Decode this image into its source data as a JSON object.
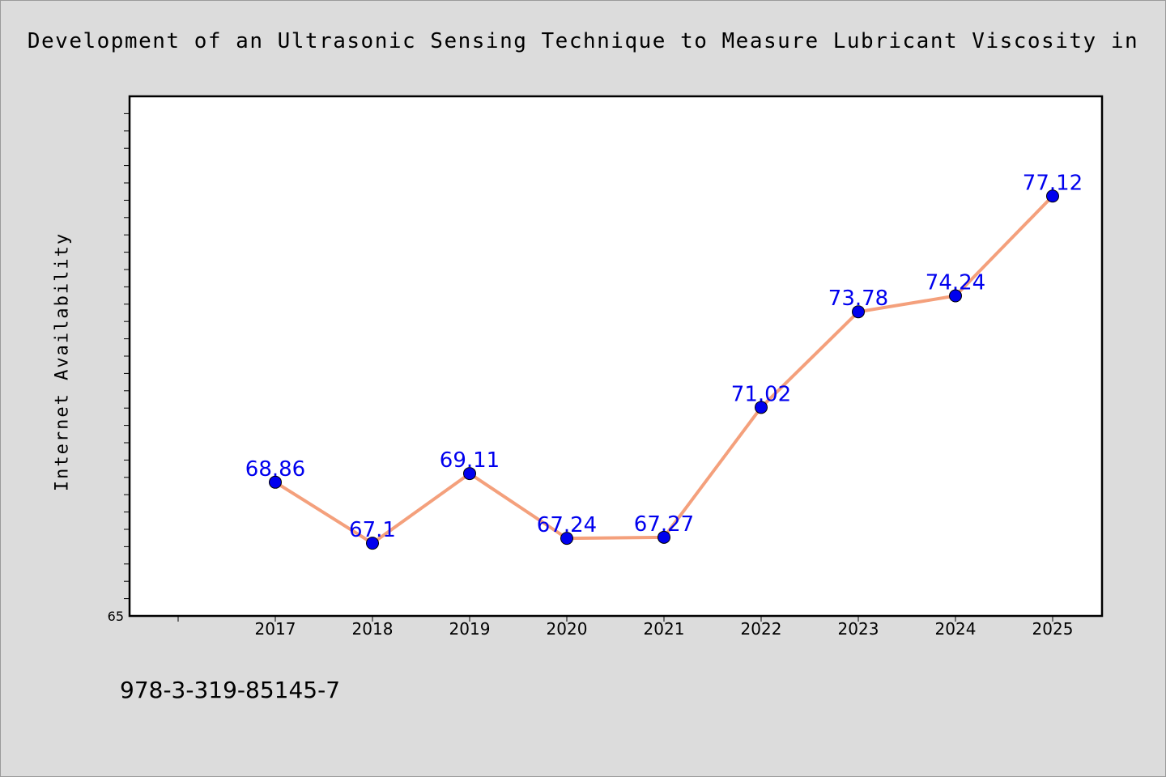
{
  "title": "Development of an Ultrasonic Sensing Technique to Measure Lubricant Viscosity in",
  "footer_text": "978-3-319-85145-7",
  "colors": {
    "background": "#dcdcdc",
    "plot_area": "#ffffff",
    "line": "#f4a07c",
    "marker": "#0000ee",
    "data_label": "#0000ee"
  },
  "chart_data": {
    "type": "line",
    "title": "Development of an Ultrasonic Sensing Technique to Measure Lubricant Viscosity in",
    "xlabel": "",
    "ylabel": "Internet Availability",
    "categories": [
      "2017",
      "2018",
      "2019",
      "2020",
      "2021",
      "2022",
      "2023",
      "2024",
      "2025"
    ],
    "series": [
      {
        "values": [
          68.86,
          67.1,
          69.11,
          67.24,
          67.27,
          71.02,
          73.78,
          74.24,
          77.12
        ]
      }
    ],
    "data_labels": [
      "68.86",
      "67.1",
      "69.11",
      "67.24",
      "67.27",
      "71.02",
      "73.78",
      "74.24",
      "77.12"
    ],
    "ylim": [
      65,
      80
    ],
    "y_tick_labels": [
      "65"
    ],
    "grid": false,
    "legend": "none"
  }
}
